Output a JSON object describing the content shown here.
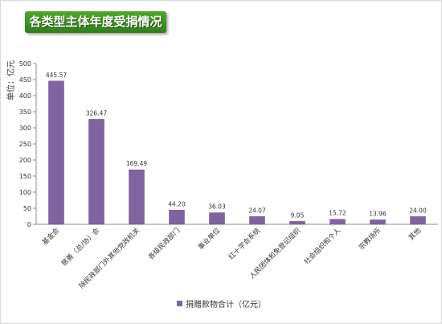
{
  "colors": {
    "bar": "#8064a2",
    "bar_edge": "#6a5190",
    "title_bg": "#3c9420",
    "axis": "#8c8c8c",
    "text": "#333333"
  },
  "chart_data": {
    "type": "bar",
    "title": "各类型主体年度受捐情况",
    "ylabel": "单位：亿元",
    "xlabel": "",
    "ylim": [
      0,
      500
    ],
    "yticks": [
      0,
      50,
      100,
      150,
      200,
      250,
      300,
      350,
      400,
      450,
      500
    ],
    "grid": false,
    "legend_position": "bottom",
    "categories": [
      "基金会",
      "慈善（总/协）会",
      "除民政部门外其他党政机关",
      "各级民政部门",
      "事业单位",
      "红十字会系统",
      "人民团体和免登记组织",
      "社会组织和个人",
      "宗教场所",
      "其他"
    ],
    "series": [
      {
        "name": "捐赠款物合计（亿元）",
        "values": [
          445.57,
          326.47,
          169.49,
          44.2,
          36.03,
          24.07,
          9.05,
          15.72,
          13.96,
          24.0
        ],
        "labels": [
          "445.57",
          "326.47",
          "169.49",
          "44.20",
          "36.03",
          "24.07",
          "9.05",
          "15.72",
          "13.96",
          "24.00"
        ]
      }
    ]
  }
}
